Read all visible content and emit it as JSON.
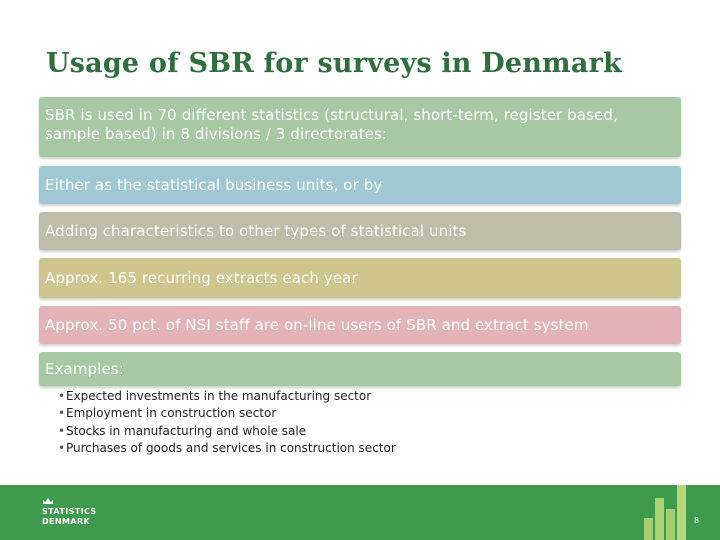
{
  "slide": {
    "title": "Usage of SBR for surveys in Denmark",
    "bands": [
      {
        "text": "SBR is used in 70 different statistics (structural, short-term, register based, sample based) in 8 divisions / 3 directorates:",
        "color": "#a6c9a3"
      },
      {
        "text": "Either as the statistical business units, or by",
        "color": "#9fc8d4"
      },
      {
        "text": "Adding characteristics to other types of statistical units",
        "color": "#bfbda9"
      },
      {
        "text": "Approx. 165 recurring extracts each year",
        "color": "#cfc58e"
      },
      {
        "text": "Approx. 50 pct. of NSI staff are on-line users of SBR and extract system",
        "color": "#e4b3b8"
      },
      {
        "text": "Examples:",
        "color": "#a6c9a3"
      }
    ],
    "examples": [
      "Expected investments in the manufacturing sector",
      "Employment in construction sector",
      "Stocks in manufacturing and whole sale",
      "Purchases of goods and services in construction sector"
    ],
    "bullet": "•"
  },
  "footer": {
    "logo_line1": "STATISTICS",
    "logo_line2": "DENMARK",
    "page_number": "8",
    "background_color": "#3e9a4c",
    "accent_color": "#b7d77a",
    "logo_icon": "crown-icon"
  }
}
